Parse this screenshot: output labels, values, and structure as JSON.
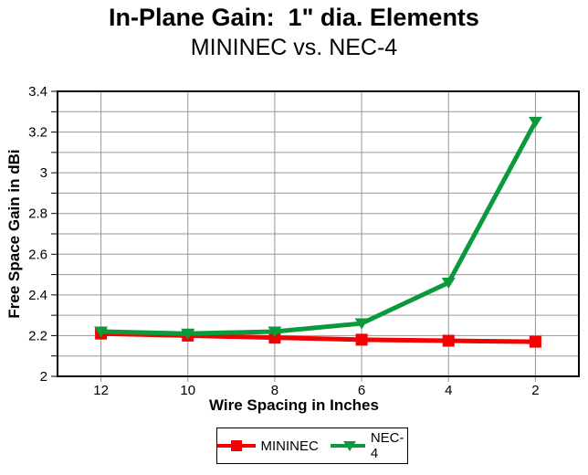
{
  "header": {
    "title": "In-Plane Gain:  1\" dia. Elements",
    "subtitle": "MININEC vs. NEC-4"
  },
  "chart_data": {
    "type": "line",
    "title": "In-Plane Gain:  1\" dia. Elements",
    "subtitle": "MININEC vs. NEC-4",
    "xlabel": "Wire Spacing in Inches",
    "ylabel": "Free Space Gain in dBi",
    "x": [
      12,
      10,
      8,
      6,
      4,
      2
    ],
    "xtick_labels": [
      "12",
      "10",
      "8",
      "6",
      "4",
      "2"
    ],
    "x_axis_reversed": true,
    "ylim": [
      2,
      3.4
    ],
    "ytick_values": [
      2,
      2.2,
      2.4,
      2.6,
      2.8,
      3,
      3.2,
      3.4
    ],
    "ytick_labels": [
      "2",
      "2.2",
      "2.4",
      "2.6",
      "2.8",
      "3",
      "3.2",
      "3.4"
    ],
    "minor_ytick_step": 0.1,
    "grid": true,
    "grid_color": "#969696",
    "axis_color": "#000000",
    "legend_position": "bottom",
    "series": [
      {
        "name": "MININEC",
        "color": "#f40000",
        "marker": "square",
        "values": [
          2.21,
          2.2,
          2.19,
          2.18,
          2.175,
          2.17
        ]
      },
      {
        "name": "NEC-4",
        "color": "#0a9a3c",
        "marker": "triangle-down",
        "values": [
          2.22,
          2.21,
          2.22,
          2.26,
          2.46,
          3.25
        ]
      }
    ]
  }
}
